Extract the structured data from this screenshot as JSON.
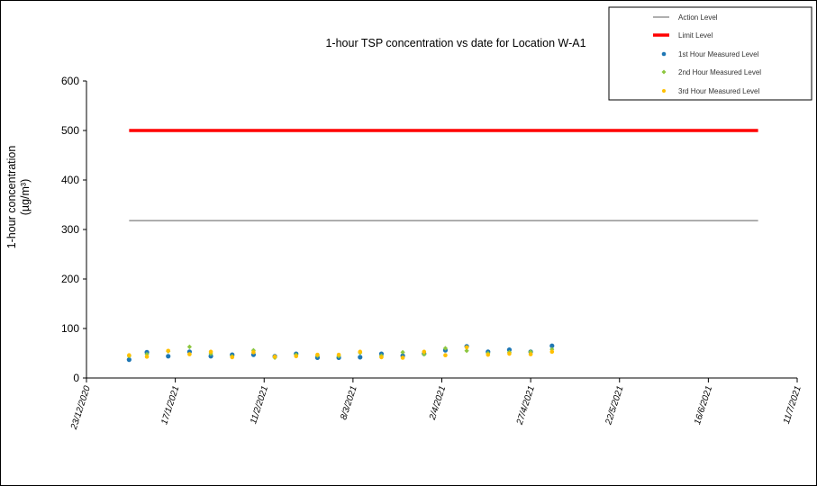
{
  "chart_data": {
    "type": "scatter",
    "title": "1-hour TSP concentration vs date for Location W-A1",
    "ylabel_line1": "1-hour concentration",
    "ylabel_line2": "(µg/m³)",
    "xlabel": "",
    "ylim": [
      0,
      600
    ],
    "yticks": [
      0,
      100,
      200,
      300,
      400,
      500,
      600
    ],
    "x_tick_labels": [
      "23/12/2020",
      "17/1/2021",
      "11/2/2021",
      "8/3/2021",
      "2/4/2021",
      "27/4/2021",
      "22/5/2021",
      "16/6/2021",
      "11/7/2021"
    ],
    "xlim": [
      "2020-12-23",
      "2021-07-11"
    ],
    "x_tick_dates": [
      "2020-12-23",
      "2021-01-17",
      "2021-02-11",
      "2021-03-08",
      "2021-04-02",
      "2021-04-27",
      "2021-05-22",
      "2021-06-16",
      "2021-07-11"
    ],
    "grid": false,
    "legend_position": "top-right",
    "legend_entries": [
      "Action Level",
      "Limit Level",
      "1st Hour Measured Level",
      "2nd Hour Measured Level",
      "3rd Hour Measured Level"
    ],
    "lines": [
      {
        "name": "Action Level",
        "color": "#7f7f7f",
        "x": [
          "2021-01-04",
          "2021-06-30"
        ],
        "y": [
          318,
          318
        ]
      },
      {
        "name": "Limit Level",
        "color": "#ff0000",
        "x": [
          "2021-01-04",
          "2021-06-30"
        ],
        "y": [
          500,
          500
        ]
      }
    ],
    "series": [
      {
        "name": "1st Hour Measured Level",
        "color": "#1f77b4",
        "x": [
          "2021-01-04",
          "2021-01-09",
          "2021-01-15",
          "2021-01-21",
          "2021-01-27",
          "2021-02-02",
          "2021-02-08",
          "2021-02-14",
          "2021-02-20",
          "2021-02-26",
          "2021-03-04",
          "2021-03-10",
          "2021-03-16",
          "2021-03-22",
          "2021-03-28",
          "2021-04-03",
          "2021-04-09",
          "2021-04-15",
          "2021-04-21",
          "2021-04-27",
          "2021-05-03"
        ],
        "y": [
          37,
          52,
          44,
          53,
          44,
          47,
          47,
          44,
          49,
          41,
          41,
          42,
          49,
          45,
          49,
          56,
          64,
          53,
          57,
          53,
          65
        ]
      },
      {
        "name": "2nd Hour Measured Level",
        "color": "#8dc63f",
        "x": [
          "2021-01-04",
          "2021-01-09",
          "2021-01-15",
          "2021-01-21",
          "2021-01-27",
          "2021-02-02",
          "2021-02-08",
          "2021-02-14",
          "2021-02-20",
          "2021-02-26",
          "2021-03-04",
          "2021-03-10",
          "2021-03-16",
          "2021-03-22",
          "2021-03-28",
          "2021-04-03",
          "2021-04-09",
          "2021-04-15",
          "2021-04-21",
          "2021-04-27",
          "2021-05-03"
        ],
        "y": [
          44,
          48,
          54,
          63,
          49,
          44,
          56,
          41,
          47,
          45,
          44,
          51,
          45,
          52,
          48,
          60,
          55,
          50,
          52,
          53,
          58
        ]
      },
      {
        "name": "3rd Hour Measured Level",
        "color": "#ffc000",
        "x": [
          "2021-01-04",
          "2021-01-09",
          "2021-01-15",
          "2021-01-21",
          "2021-01-27",
          "2021-02-02",
          "2021-02-08",
          "2021-02-14",
          "2021-02-20",
          "2021-02-26",
          "2021-03-04",
          "2021-03-10",
          "2021-03-16",
          "2021-03-22",
          "2021-03-28",
          "2021-04-03",
          "2021-04-09",
          "2021-04-15",
          "2021-04-21",
          "2021-04-27",
          "2021-05-03"
        ],
        "y": [
          46,
          43,
          55,
          48,
          53,
          42,
          52,
          43,
          44,
          47,
          47,
          53,
          42,
          41,
          53,
          46,
          62,
          47,
          49,
          48,
          53
        ]
      }
    ]
  }
}
